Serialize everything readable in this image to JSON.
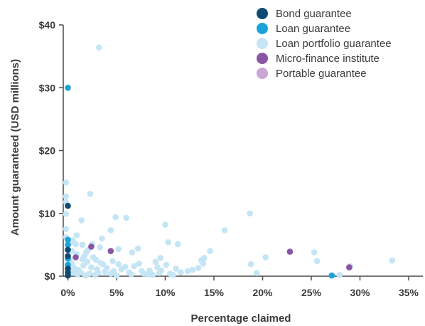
{
  "chart_data": {
    "type": "scatter",
    "xlabel": "Percentage claimed",
    "ylabel": "Amount guaranteed (USD millions)",
    "xlim": [
      0,
      36
    ],
    "ylim": [
      0,
      40
    ],
    "x_ticks": [
      0,
      5,
      10,
      15,
      20,
      25,
      30,
      35
    ],
    "x_tick_labels": [
      "0%",
      "5%",
      "10%",
      "15%",
      "20%",
      "25%",
      "30%",
      "35%"
    ],
    "y_ticks": [
      0,
      10,
      20,
      30,
      40
    ],
    "y_tick_labels": [
      "$0",
      "$10",
      "$20",
      "$30",
      "$40"
    ],
    "grid": false,
    "legend_position": "top-right",
    "series": [
      {
        "name": "Bond guarantee",
        "color": "#0f4a73",
        "points": [
          [
            0,
            11.2
          ],
          [
            0,
            4.2
          ],
          [
            0,
            3.2
          ],
          [
            0,
            1.2
          ],
          [
            0,
            0.6
          ],
          [
            0,
            0.1
          ]
        ]
      },
      {
        "name": "Loan guarantee",
        "color": "#1aa3db",
        "points": [
          [
            0,
            30
          ],
          [
            0,
            5.8
          ],
          [
            0,
            5.0
          ],
          [
            0,
            2.8
          ],
          [
            0,
            1.8
          ],
          [
            27.1,
            0.1
          ]
        ]
      },
      {
        "name": "Loan portfolio guarantee",
        "color": "#c5e5f5",
        "points": [
          [
            3.2,
            36.4
          ],
          [
            -0.2,
            14.9
          ],
          [
            -0.2,
            12.7
          ],
          [
            -0.2,
            11.8
          ],
          [
            -0.2,
            9.9
          ],
          [
            -0.2,
            7.5
          ],
          [
            -0.2,
            6.2
          ],
          [
            2.3,
            13.1
          ],
          [
            4.9,
            9.4
          ],
          [
            6.0,
            9.3
          ],
          [
            1.4,
            8.9
          ],
          [
            10.0,
            8.2
          ],
          [
            16.1,
            7.3
          ],
          [
            18.7,
            10.0
          ],
          [
            4.4,
            7.3
          ],
          [
            0.9,
            6.5
          ],
          [
            3.5,
            6.0
          ],
          [
            0.5,
            5.7
          ],
          [
            0.3,
            5.4
          ],
          [
            0.8,
            5.1
          ],
          [
            1.5,
            5.0
          ],
          [
            2.5,
            5.1
          ],
          [
            11.3,
            5.1
          ],
          [
            10.3,
            5.4
          ],
          [
            3.3,
            4.6
          ],
          [
            5.2,
            4.3
          ],
          [
            7.2,
            4.4
          ],
          [
            6.6,
            3.8
          ],
          [
            2.1,
            4.2
          ],
          [
            1.9,
            3.8
          ],
          [
            0.4,
            4.0
          ],
          [
            0.9,
            3.5
          ],
          [
            1.7,
            3.2
          ],
          [
            2.6,
            3.0
          ],
          [
            9.5,
            2.9
          ],
          [
            9.0,
            2.3
          ],
          [
            14.6,
            4.0
          ],
          [
            14.0,
            2.9
          ],
          [
            13.7,
            2.5
          ],
          [
            13.9,
            2.0
          ],
          [
            20.3,
            3.0
          ],
          [
            18.8,
            1.9
          ],
          [
            19.4,
            0.5
          ],
          [
            25.3,
            3.8
          ],
          [
            25.6,
            2.4
          ],
          [
            33.3,
            2.5
          ],
          [
            29.0,
            1.6
          ],
          [
            27.9,
            0.2
          ],
          [
            0.2,
            2.6
          ],
          [
            0.4,
            2.0
          ],
          [
            0.5,
            1.6
          ],
          [
            0.7,
            1.2
          ],
          [
            1.1,
            1.0
          ],
          [
            1.3,
            0.6
          ],
          [
            1.0,
            0.3
          ],
          [
            1.6,
            1.7
          ],
          [
            2.0,
            2.3
          ],
          [
            2.4,
            1.4
          ],
          [
            3.0,
            1.1
          ],
          [
            3.1,
            0.5
          ],
          [
            3.6,
            1.9
          ],
          [
            4.0,
            1.3
          ],
          [
            4.4,
            0.4
          ],
          [
            4.7,
            0.8
          ],
          [
            5.2,
            1.9
          ],
          [
            5.5,
            1.1
          ],
          [
            5.9,
            1.5
          ],
          [
            6.3,
            0.6
          ],
          [
            6.8,
            1.6
          ],
          [
            7.3,
            2.0
          ],
          [
            7.6,
            0.8
          ],
          [
            7.8,
            0.4
          ],
          [
            8.4,
            0.9
          ],
          [
            8.7,
            0.2
          ],
          [
            9.2,
            1.4
          ],
          [
            9.6,
            0.9
          ],
          [
            10.1,
            1.8
          ],
          [
            10.5,
            0.4
          ],
          [
            11.1,
            1.2
          ],
          [
            11.6,
            0.6
          ],
          [
            12.3,
            0.8
          ],
          [
            12.8,
            1.0
          ],
          [
            13.4,
            1.3
          ],
          [
            2.8,
            0.2
          ],
          [
            3.8,
            0.7
          ],
          [
            8.2,
            0.3
          ],
          [
            9.4,
            0.5
          ],
          [
            10.8,
            0.2
          ],
          [
            1.8,
            0.1
          ],
          [
            2.2,
            0.4
          ],
          [
            5.0,
            0.1
          ],
          [
            6.5,
            0.3
          ],
          [
            0.6,
            0.5
          ],
          [
            0.3,
            0.9
          ],
          [
            1.5,
            2.7
          ],
          [
            2.9,
            2.6
          ],
          [
            4.6,
            2.4
          ],
          [
            3.4,
            2.1
          ]
        ]
      },
      {
        "name": "Micro-finance institute",
        "color": "#8a55a5",
        "points": [
          [
            2.4,
            4.7
          ],
          [
            4.4,
            4.0
          ],
          [
            0.8,
            3.0
          ],
          [
            22.8,
            3.9
          ],
          [
            28.9,
            1.4
          ]
        ]
      },
      {
        "name": "Portable guarantee",
        "color": "#c9a6d4",
        "points": []
      }
    ]
  }
}
